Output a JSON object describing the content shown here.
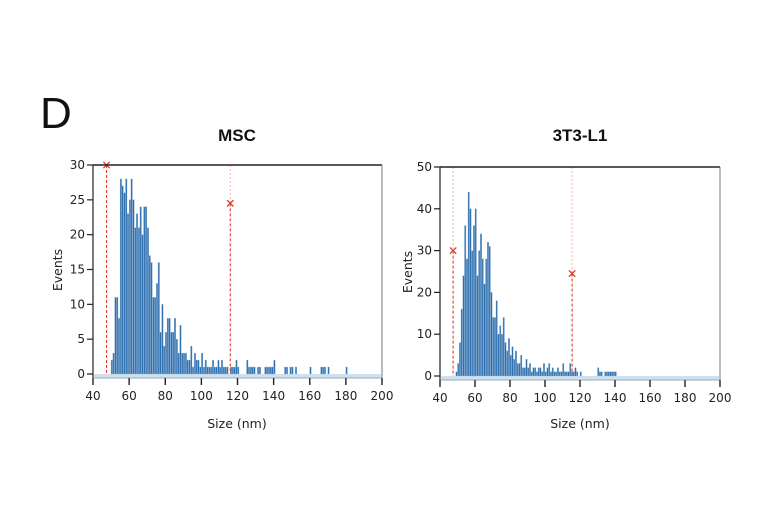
{
  "panel_label": "D",
  "chart_data": [
    {
      "type": "bar",
      "title": "MSC",
      "xlabel": "Size (nm)",
      "ylabel": "Events",
      "xlim": [
        40,
        200
      ],
      "ylim": [
        0,
        30
      ],
      "xticks": [
        40,
        60,
        80,
        100,
        120,
        140,
        160,
        180,
        200
      ],
      "yticks": [
        0,
        5,
        10,
        15,
        20,
        25,
        30
      ],
      "grid": false,
      "bin_width_nm": 1,
      "bar_color": "#2e6fad",
      "marker_color": "#e0402a",
      "markers": [
        {
          "x": 47.5,
          "y": 30,
          "symbol": "x"
        },
        {
          "x": 116,
          "y": 24.5,
          "symbol": "x"
        }
      ],
      "x": [
        50,
        51,
        52,
        53,
        54,
        55,
        56,
        57,
        58,
        59,
        60,
        61,
        62,
        63,
        64,
        65,
        66,
        67,
        68,
        69,
        70,
        71,
        72,
        73,
        74,
        75,
        76,
        77,
        78,
        79,
        80,
        81,
        82,
        83,
        84,
        85,
        86,
        87,
        88,
        89,
        90,
        91,
        92,
        93,
        94,
        95,
        96,
        97,
        98,
        99,
        100,
        101,
        102,
        103,
        104,
        105,
        106,
        107,
        108,
        109,
        110,
        111,
        112,
        113,
        114,
        116,
        117,
        118,
        119,
        120,
        125,
        126,
        127,
        128,
        129,
        131,
        132,
        135,
        136,
        137,
        138,
        139,
        140,
        146,
        147,
        149,
        150,
        152,
        160,
        166,
        167,
        168,
        170,
        180
      ],
      "values": [
        2,
        3,
        11,
        11,
        8,
        28,
        27,
        26,
        28,
        23,
        25,
        28,
        25,
        21,
        23,
        21,
        24,
        20,
        24,
        24,
        21,
        17,
        16,
        11,
        11,
        13,
        16,
        6,
        10,
        4,
        6,
        8,
        8,
        6,
        6,
        8,
        5,
        3,
        7,
        3,
        3,
        3,
        2,
        2,
        4,
        1,
        3,
        2,
        2,
        1,
        3,
        1,
        2,
        1,
        1,
        1,
        2,
        1,
        1,
        2,
        1,
        2,
        1,
        1,
        1,
        1,
        1,
        1,
        2,
        1,
        2,
        1,
        1,
        1,
        1,
        1,
        1,
        1,
        1,
        1,
        1,
        1,
        2,
        1,
        1,
        1,
        1,
        1,
        1,
        1,
        1,
        1,
        1,
        1
      ]
    },
    {
      "type": "bar",
      "title": "3T3-L1",
      "xlabel": "Size (nm)",
      "ylabel": "Events",
      "xlim": [
        40,
        200
      ],
      "ylim": [
        0,
        50
      ],
      "xticks": [
        40,
        60,
        80,
        100,
        120,
        140,
        160,
        180,
        200
      ],
      "yticks": [
        0,
        10,
        20,
        30,
        40,
        50
      ],
      "grid": false,
      "bin_width_nm": 1,
      "bar_color": "#2e6fad",
      "marker_color": "#e0402a",
      "markers": [
        {
          "x": 47.5,
          "y": 30,
          "symbol": "x"
        },
        {
          "x": 115.5,
          "y": 24.5,
          "symbol": "x"
        }
      ],
      "x": [
        49,
        50,
        51,
        52,
        53,
        54,
        55,
        56,
        57,
        58,
        59,
        60,
        61,
        62,
        63,
        64,
        65,
        66,
        67,
        68,
        69,
        70,
        71,
        72,
        73,
        74,
        75,
        76,
        77,
        78,
        79,
        80,
        81,
        82,
        83,
        84,
        85,
        86,
        87,
        88,
        89,
        90,
        91,
        92,
        93,
        94,
        95,
        96,
        97,
        98,
        99,
        100,
        101,
        102,
        103,
        104,
        105,
        106,
        107,
        108,
        109,
        110,
        111,
        112,
        113,
        114,
        115,
        116,
        117,
        118,
        120,
        130,
        131,
        132,
        134,
        135,
        136,
        137,
        138,
        139,
        140
      ],
      "values": [
        1,
        3,
        8,
        16,
        24,
        36,
        28,
        44,
        40,
        30,
        36,
        40,
        24,
        30,
        34,
        28,
        22,
        28,
        32,
        31,
        20,
        14,
        14,
        18,
        10,
        12,
        10,
        14,
        8,
        6,
        9,
        5,
        7,
        4,
        6,
        3,
        3,
        5,
        2,
        2,
        4,
        2,
        3,
        1,
        2,
        2,
        1,
        2,
        2,
        1,
        3,
        1,
        2,
        3,
        1,
        2,
        1,
        1,
        2,
        1,
        1,
        3,
        1,
        1,
        1,
        3,
        1,
        1,
        2,
        1,
        1,
        2,
        1,
        1,
        1,
        1,
        1,
        1,
        1,
        1,
        1
      ]
    }
  ]
}
